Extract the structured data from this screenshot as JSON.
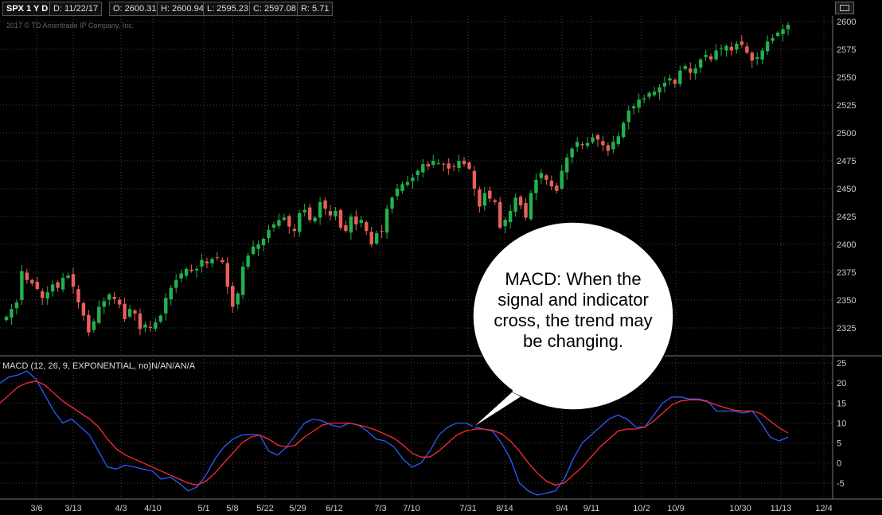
{
  "header": {
    "symbol": "SPX 1 Y D",
    "date": "D: 11/22/17",
    "open": "O: 2600.31",
    "high": "H: 2600.94",
    "low": "L: 2595.23",
    "close": "C: 2597.08",
    "range": "R: 5.71"
  },
  "copyright": "2017 © TD Ameritrade IP Company, Inc.",
  "macd_label": "MACD (12, 26, 9, EXPONENTIAL, no)N/AN/AN/A",
  "callout": "MACD: When the signal and indicator cross, the trend may be changing.",
  "colors": {
    "up": "#22b14c",
    "down": "#e8605a",
    "macd": "#2d5bff",
    "signal": "#ff2a36",
    "grid": "#444444"
  },
  "chart_data": [
    {
      "type": "candlestick",
      "x_ticks": [
        "3/6",
        "3/13",
        "4/3",
        "4/10",
        "5/1",
        "5/8",
        "5/22",
        "5/29",
        "6/12",
        "7/3",
        "7/10",
        "7/31",
        "8/14",
        "9/4",
        "9/11",
        "10/2",
        "10/9",
        "10/30",
        "11/13",
        "12/4"
      ],
      "y_ticks": [
        2325,
        2350,
        2375,
        2400,
        2425,
        2450,
        2475,
        2500,
        2525,
        2550,
        2575,
        2600
      ],
      "ylim": [
        2300,
        2605
      ],
      "closes": [
        2335,
        2342,
        2348,
        2376,
        2368,
        2365,
        2360,
        2352,
        2357,
        2364,
        2361,
        2370,
        2372,
        2362,
        2348,
        2336,
        2321,
        2331,
        2344,
        2349,
        2355,
        2351,
        2346,
        2333,
        2342,
        2338,
        2324,
        2328,
        2325,
        2330,
        2336,
        2352,
        2361,
        2368,
        2374,
        2378,
        2376,
        2378,
        2386,
        2383,
        2387,
        2388,
        2384,
        2362,
        2344,
        2356,
        2380,
        2390,
        2398,
        2400,
        2405,
        2413,
        2418,
        2422,
        2424,
        2416,
        2412,
        2428,
        2431,
        2422,
        2424,
        2438,
        2432,
        2426,
        2430,
        2415,
        2412,
        2425,
        2418,
        2422,
        2412,
        2400,
        2410,
        2412,
        2432,
        2442,
        2450,
        2454,
        2456,
        2460,
        2466,
        2472,
        2470,
        2475,
        2473,
        2472,
        2468,
        2470,
        2475,
        2472,
        2468,
        2450,
        2434,
        2446,
        2441,
        2438,
        2415,
        2422,
        2430,
        2442,
        2435,
        2424,
        2446,
        2458,
        2464,
        2458,
        2452,
        2448,
        2466,
        2478,
        2486,
        2492,
        2489,
        2491,
        2496,
        2494,
        2489,
        2484,
        2492,
        2497,
        2509,
        2520,
        2524,
        2530,
        2531,
        2536,
        2537,
        2541,
        2545,
        2549,
        2544,
        2556,
        2560,
        2554,
        2558,
        2566,
        2570,
        2566,
        2574,
        2576,
        2578,
        2574,
        2580,
        2579,
        2572,
        2565,
        2568,
        2574,
        2582,
        2585,
        2590,
        2593,
        2597
      ]
    },
    {
      "type": "line",
      "y_ticks": [
        -5,
        0,
        5,
        10,
        15,
        20,
        25
      ],
      "ylim": [
        -9,
        26
      ],
      "series": [
        {
          "values": [
            20,
            21.5,
            22,
            23,
            21,
            17,
            13,
            10,
            11,
            9,
            7,
            3,
            -1,
            -1.5,
            -0.5,
            -1,
            -1.5,
            -2,
            -4,
            -3.5,
            -5,
            -7,
            -6,
            -3,
            1,
            4,
            6,
            7,
            7.2,
            7,
            3,
            2,
            4,
            7,
            10,
            11,
            10.5,
            9.5,
            9,
            10,
            9.5,
            8,
            6,
            5.5,
            4,
            1,
            -1,
            0,
            3,
            7,
            9,
            10,
            10,
            9,
            8.5,
            8,
            5,
            1,
            -5,
            -7,
            -8,
            -7.5,
            -7,
            -4,
            1,
            5,
            7,
            9,
            11,
            12,
            11,
            9,
            9,
            12,
            15,
            16.5,
            16.5,
            16,
            16,
            15.5,
            13,
            13,
            13,
            12.5,
            13,
            10,
            6.5,
            5.5,
            6.5
          ]
        },
        {
          "values": [
            15,
            17,
            19,
            20,
            20.5,
            19.5,
            17.5,
            15.5,
            14,
            12.5,
            11,
            9,
            6,
            3.5,
            2,
            1,
            0,
            -1,
            -2,
            -3,
            -4,
            -5,
            -5.5,
            -4.5,
            -2.5,
            0,
            2.5,
            5,
            6.5,
            7,
            6,
            4.5,
            4,
            4.5,
            6.5,
            8,
            9.5,
            10,
            10,
            10,
            9.5,
            9,
            8.2,
            7.2,
            6.2,
            4.5,
            2.5,
            1.5,
            1.5,
            3,
            5,
            7,
            8,
            8.5,
            8.5,
            8.2,
            7.3,
            5.5,
            3,
            0,
            -2.5,
            -4.5,
            -5.5,
            -5,
            -3,
            -1,
            1.5,
            4,
            6,
            8,
            8.5,
            8.5,
            9,
            10.5,
            12.5,
            14.5,
            15.5,
            15.8,
            15.8,
            15.3,
            14.5,
            13.8,
            13.2,
            13,
            13,
            12.3,
            10.5,
            8.8,
            7.5
          ]
        }
      ]
    }
  ]
}
